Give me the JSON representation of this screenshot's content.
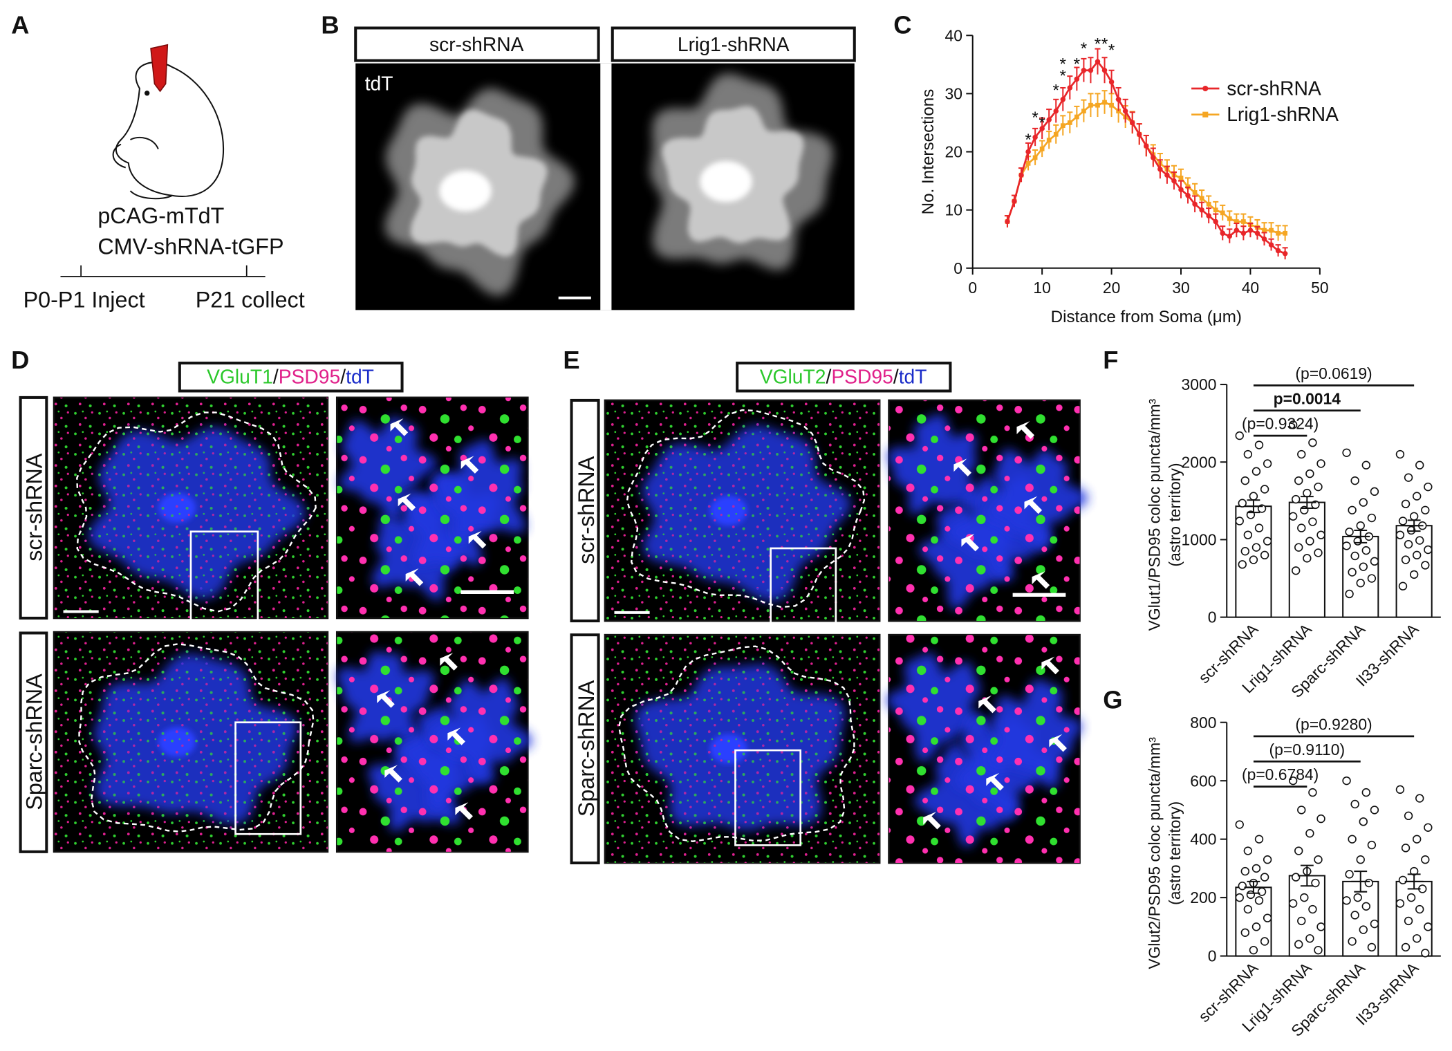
{
  "panels": {
    "A": {
      "letter": "A",
      "lines": [
        "pCAG-mTdT",
        "CMV-shRNA-tGFP"
      ],
      "timeline": [
        "P0-P1 Inject",
        "P21 collect"
      ]
    },
    "B": {
      "letter": "B",
      "columns": [
        "scr-shRNA",
        "Lrig1-shRNA"
      ],
      "stain": "tdT"
    },
    "C": {
      "letter": "C"
    },
    "D": {
      "letter": "D",
      "header": [
        "VGluT1",
        "/",
        "PSD95",
        "/",
        "tdT"
      ],
      "rows": [
        "scr-shRNA",
        "Sparc-shRNA"
      ]
    },
    "E": {
      "letter": "E",
      "header": [
        "VGluT2",
        "/",
        "PSD95",
        "/",
        "tdT"
      ],
      "rows": [
        "scr-shRNA",
        "Sparc-shRNA"
      ]
    },
    "F": {
      "letter": "F"
    },
    "G": {
      "letter": "G"
    }
  },
  "chart_data": [
    {
      "type": "line",
      "xlabel": "Distance from Soma (μm)",
      "ylabel": "No. Intersections",
      "x": [
        5,
        6,
        7,
        8,
        9,
        10,
        11,
        12,
        13,
        14,
        15,
        16,
        17,
        18,
        19,
        20,
        21,
        22,
        23,
        24,
        25,
        26,
        27,
        28,
        29,
        30,
        31,
        32,
        33,
        34,
        35,
        36,
        37,
        38,
        39,
        40,
        41,
        42,
        43,
        44,
        45
      ],
      "series": [
        {
          "name": "scr-shRNA",
          "color": "#e8262a",
          "values": [
            8,
            11.5,
            16,
            20,
            22.5,
            24,
            25.5,
            27,
            29,
            31,
            32.5,
            34,
            34,
            35.5,
            34,
            32,
            29,
            27,
            25,
            23,
            21,
            19,
            17,
            16,
            15,
            13.5,
            12.5,
            11,
            10,
            9,
            8,
            6,
            5.5,
            6.5,
            6,
            6.5,
            6,
            5,
            4,
            3,
            2.5
          ],
          "errors": [
            1,
            1,
            1.2,
            1.5,
            1.5,
            1.8,
            1.8,
            2,
            2,
            2,
            2,
            2,
            2.2,
            2.2,
            2.2,
            2,
            2,
            2,
            1.8,
            1.8,
            1.8,
            1.6,
            1.6,
            1.5,
            1.5,
            1.5,
            1.4,
            1.4,
            1.3,
            1.3,
            1.3,
            1.2,
            1.2,
            1.2,
            1.2,
            1.2,
            1.1,
            1.1,
            1,
            1,
            1
          ]
        },
        {
          "name": "Lrig1-shRNA",
          "color": "#f5a623",
          "values": [
            8,
            11.5,
            16,
            18,
            19,
            20.5,
            22,
            23,
            24.5,
            25,
            26,
            27,
            28,
            28,
            28.5,
            28,
            27,
            26,
            25,
            23,
            21,
            19.5,
            18,
            17,
            16,
            15.5,
            14,
            13,
            12,
            11,
            10,
            9.5,
            8.5,
            8,
            8,
            7.5,
            7,
            6.5,
            6.5,
            6,
            6
          ],
          "errors": [
            1,
            1,
            1.2,
            1.2,
            1.3,
            1.4,
            1.5,
            1.6,
            1.7,
            1.8,
            1.8,
            1.9,
            2,
            2,
            2,
            2,
            2,
            1.9,
            1.9,
            1.8,
            1.8,
            1.7,
            1.7,
            1.6,
            1.6,
            1.5,
            1.5,
            1.5,
            1.4,
            1.4,
            1.4,
            1.3,
            1.3,
            1.3,
            1.3,
            1.3,
            1.3,
            1.3,
            1.3,
            1.3,
            1.3
          ]
        }
      ],
      "annotations": [
        {
          "text": "*",
          "x": 8,
          "y": 22.4
        },
        {
          "text": "*",
          "x": 9,
          "y": 26.2
        },
        {
          "text": "*",
          "x": 10,
          "y": 25.3
        },
        {
          "text": "*",
          "x": 12,
          "y": 30.9
        },
        {
          "text": "*",
          "x": 13,
          "y": 33.4
        },
        {
          "text": "*",
          "x": 13,
          "y": 35.4
        },
        {
          "text": "*",
          "x": 15,
          "y": 35.4
        },
        {
          "text": "*",
          "x": 16,
          "y": 38.1
        },
        {
          "text": "*",
          "x": 18,
          "y": 38.9
        },
        {
          "text": "*",
          "x": 19,
          "y": 38.9
        },
        {
          "text": "*",
          "x": 20,
          "y": 37.8
        }
      ],
      "xlim": [
        0,
        50
      ],
      "xticks": [
        0,
        10,
        20,
        30,
        40,
        50
      ],
      "ylim": [
        0,
        40
      ],
      "yticks": [
        0,
        10,
        20,
        30,
        40
      ]
    },
    {
      "type": "bar",
      "ylabel": [
        "VGlut1/PSD95 coloc puncta/mm³",
        "(astro territory)"
      ],
      "categories": [
        "scr-shRNA",
        "Lrig1-shRNA",
        "Sparc-shRNA",
        "Il33-shRNA"
      ],
      "values": [
        1430,
        1480,
        1040,
        1180
      ],
      "errors": [
        80,
        75,
        80,
        70
      ],
      "points": [
        [
          2340,
          2220,
          2100,
          1980,
          1880,
          1760,
          1650,
          1560,
          1470,
          1400,
          1320,
          1240,
          1150,
          1060,
          980,
          900,
          850,
          800,
          740,
          680
        ],
        [
          2480,
          2250,
          2100,
          1980,
          1850,
          1760,
          1680,
          1600,
          1520,
          1450,
          1380,
          1300,
          1230,
          1150,
          1060,
          980,
          900,
          830,
          760,
          600
        ],
        [
          2120,
          1960,
          1760,
          1620,
          1480,
          1380,
          1280,
          1180,
          1100,
          1040,
          980,
          920,
          860,
          790,
          720,
          650,
          580,
          500,
          440,
          300
        ],
        [
          2100,
          1960,
          1800,
          1680,
          1560,
          1460,
          1380,
          1300,
          1240,
          1180,
          1120,
          1060,
          990,
          940,
          870,
          800,
          740,
          670,
          550,
          400
        ]
      ],
      "comparisons": [
        {
          "label": "(p=0.0619)",
          "from": 0,
          "to": 3,
          "bold": false
        },
        {
          "label": "p=0.0014",
          "from": 0,
          "to": 2,
          "bold": true
        },
        {
          "label": "(p=0.9324)",
          "from": 0,
          "to": 1,
          "bold": false
        }
      ],
      "ylim": [
        0,
        3000
      ],
      "yticks": [
        0,
        1000,
        2000,
        3000
      ]
    },
    {
      "type": "bar",
      "ylabel": [
        "VGlut2/PSD95 coloc puncta/mm³",
        "(astro territory)"
      ],
      "categories": [
        "scr-shRNA",
        "Lrig1-shRNA",
        "Sparc-shRNA",
        "Il33-shRNA"
      ],
      "values": [
        235,
        275,
        255,
        255
      ],
      "errors": [
        20,
        35,
        35,
        25
      ],
      "points": [
        [
          450,
          400,
          360,
          330,
          300,
          290,
          270,
          250,
          240,
          220,
          210,
          200,
          190,
          160,
          130,
          100,
          80,
          50,
          20
        ],
        [
          600,
          560,
          500,
          470,
          420,
          360,
          330,
          290,
          270,
          250,
          200,
          180,
          160,
          120,
          100,
          60,
          40,
          20
        ],
        [
          600,
          560,
          520,
          500,
          460,
          400,
          380,
          330,
          280,
          250,
          200,
          190,
          170,
          140,
          110,
          90,
          50,
          30
        ],
        [
          570,
          540,
          480,
          440,
          400,
          370,
          330,
          290,
          260,
          230,
          200,
          180,
          160,
          120,
          100,
          60,
          30,
          10
        ]
      ],
      "comparisons": [
        {
          "label": "(p=0.9280)",
          "from": 0,
          "to": 3,
          "bold": false
        },
        {
          "label": "(p=0.9110)",
          "from": 0,
          "to": 2,
          "bold": false
        },
        {
          "label": "(p=0.6784)",
          "from": 0,
          "to": 1,
          "bold": false
        }
      ],
      "ylim": [
        0,
        800
      ],
      "yticks": [
        0,
        200,
        400,
        600,
        800
      ]
    }
  ]
}
